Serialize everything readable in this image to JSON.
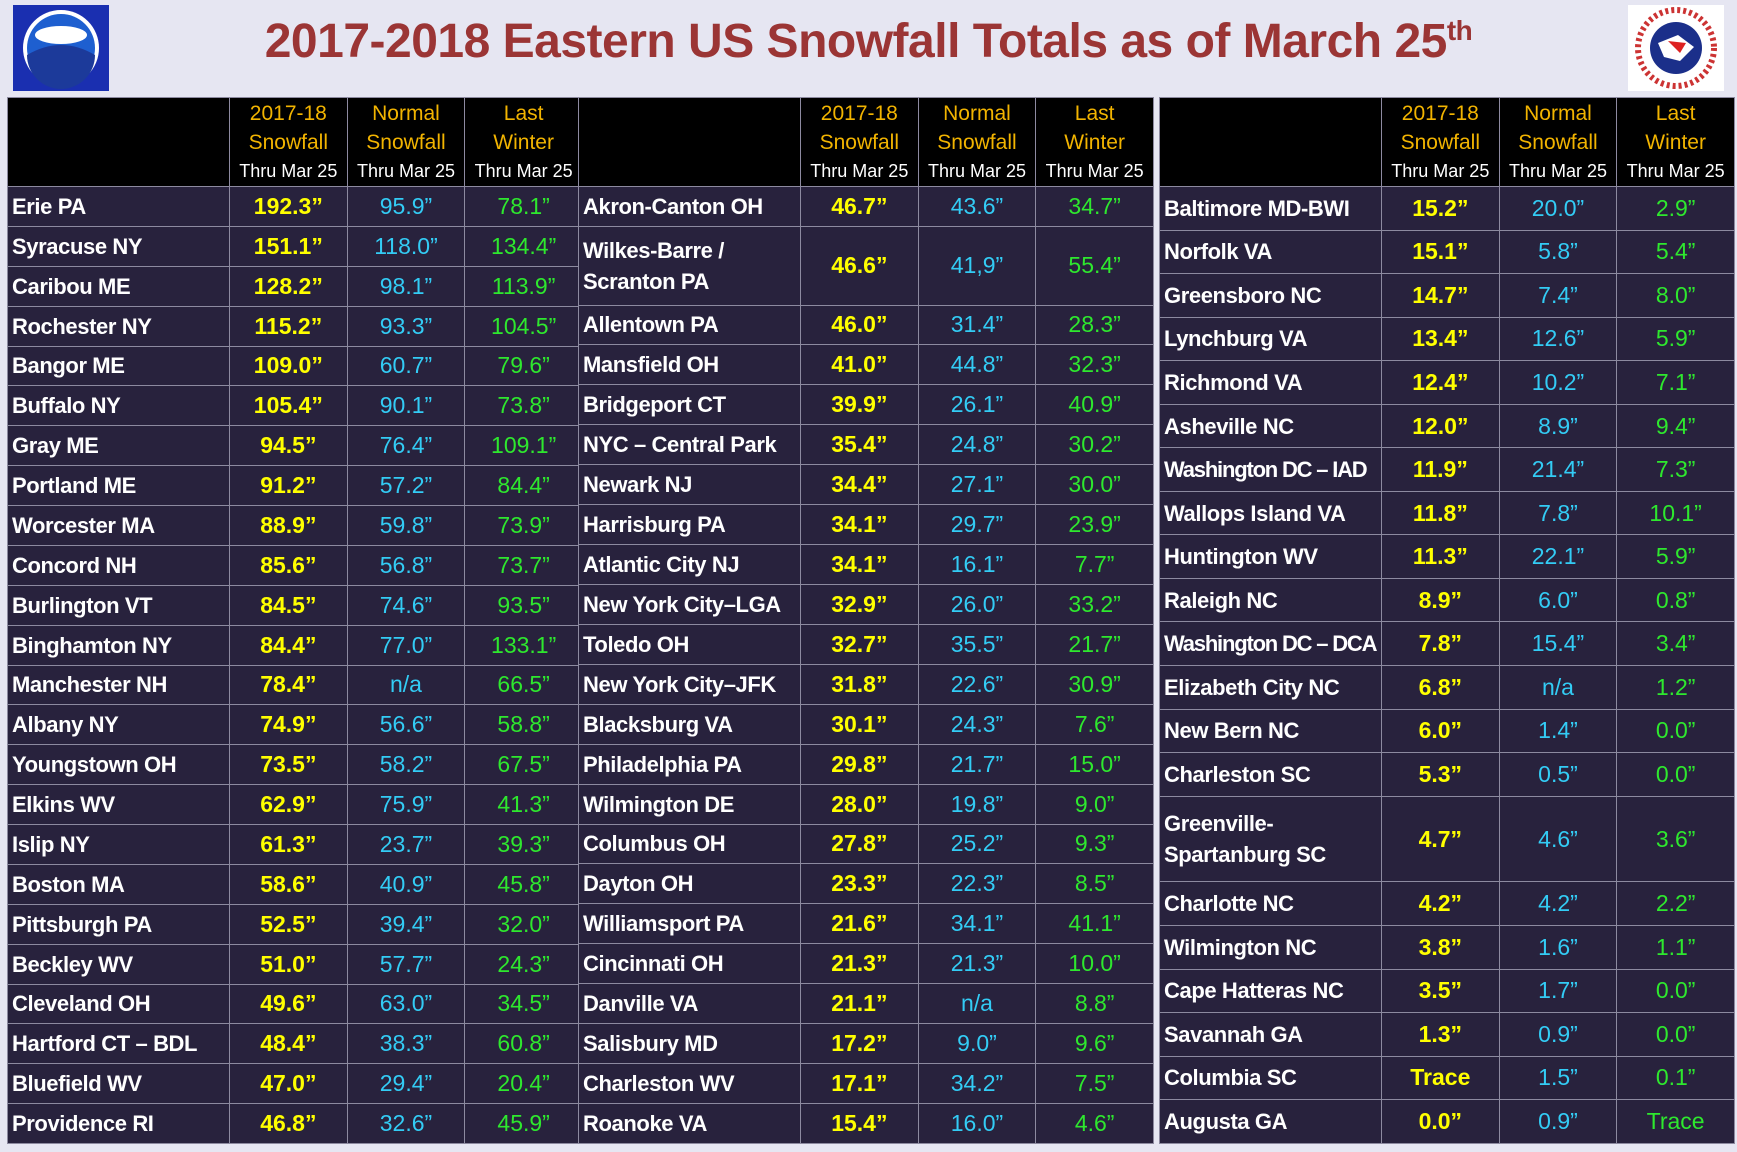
{
  "header": {
    "title": "2017-2018 Eastern US Snowfall Totals as of March 25",
    "title_sup": "th"
  },
  "tables": [
    {
      "columns": [
        {
          "line1": "2017-18",
          "line2": "Snowfall",
          "sub": "Thru Mar 25"
        },
        {
          "line1": "Normal",
          "line2": "Snowfall",
          "sub": "Thru Mar 25"
        },
        {
          "line1": "Last",
          "line2": "Winter",
          "sub": "Thru Mar 25"
        }
      ],
      "rows": [
        [
          "Erie PA",
          "192.3”",
          "95.9”",
          "78.1”"
        ],
        [
          "Syracuse NY",
          "151.1”",
          "118.0”",
          "134.4”"
        ],
        [
          "Caribou ME",
          "128.2”",
          "98.1”",
          "113.9”"
        ],
        [
          "Rochester NY",
          "115.2”",
          "93.3”",
          "104.5”"
        ],
        [
          "Bangor ME",
          "109.0”",
          "60.7”",
          "79.6”"
        ],
        [
          "Buffalo NY",
          "105.4”",
          "90.1”",
          "73.8”"
        ],
        [
          "Gray ME",
          "94.5”",
          "76.4”",
          "109.1”"
        ],
        [
          "Portland ME",
          "91.2”",
          "57.2”",
          "84.4”"
        ],
        [
          "Worcester MA",
          "88.9”",
          "59.8”",
          "73.9”"
        ],
        [
          "Concord NH",
          "85.6”",
          "56.8”",
          "73.7”"
        ],
        [
          "Burlington VT",
          "84.5”",
          "74.6”",
          "93.5”"
        ],
        [
          "Binghamton NY",
          "84.4”",
          "77.0”",
          "133.1”"
        ],
        [
          "Manchester NH",
          "78.4”",
          "n/a",
          "66.5”"
        ],
        [
          "Albany NY",
          "74.9”",
          "56.6”",
          "58.8”"
        ],
        [
          "Youngstown OH",
          "73.5”",
          "58.2”",
          "67.5”"
        ],
        [
          "Elkins WV",
          "62.9”",
          "75.9”",
          "41.3”"
        ],
        [
          "Islip NY",
          "61.3”",
          "23.7”",
          "39.3”"
        ],
        [
          "Boston MA",
          "58.6”",
          "40.9”",
          "45.8”"
        ],
        [
          "Pittsburgh PA",
          "52.5”",
          "39.4”",
          "32.0”"
        ],
        [
          "Beckley WV",
          "51.0”",
          "57.7”",
          "24.3”"
        ],
        [
          "Cleveland OH",
          "49.6”",
          "63.0”",
          "34.5”"
        ],
        [
          "Hartford CT – BDL",
          "48.4”",
          "38.3”",
          "60.8”"
        ],
        [
          "Bluefield WV",
          "47.0”",
          "29.4”",
          "20.4”"
        ],
        [
          "Providence RI",
          "46.8”",
          "32.6”",
          "45.9”"
        ]
      ]
    },
    {
      "columns": [
        {
          "line1": "2017-18",
          "line2": "Snowfall",
          "sub": "Thru Mar 25"
        },
        {
          "line1": "Normal",
          "line2": "Snowfall",
          "sub": "Thru Mar 25"
        },
        {
          "line1": "Last",
          "line2": "Winter",
          "sub": "Thru Mar 25"
        }
      ],
      "rows": [
        [
          "Akron-Canton OH",
          "46.7”",
          "43.6”",
          "34.7”"
        ],
        [
          "Wilkes-Barre / Scranton PA",
          "46.6”",
          "41,9”",
          "55.4”"
        ],
        [
          "Allentown PA",
          "46.0”",
          "31.4”",
          "28.3”"
        ],
        [
          "Mansfield OH",
          "41.0”",
          "44.8”",
          "32.3”"
        ],
        [
          "Bridgeport CT",
          "39.9”",
          "26.1”",
          "40.9”"
        ],
        [
          "NYC – Central Park",
          "35.4”",
          "24.8”",
          "30.2”"
        ],
        [
          "Newark NJ",
          "34.4”",
          "27.1”",
          "30.0”"
        ],
        [
          "Harrisburg PA",
          "34.1”",
          "29.7”",
          "23.9”"
        ],
        [
          "Atlantic City NJ",
          "34.1”",
          "16.1”",
          "7.7”"
        ],
        [
          "New York City–LGA",
          "32.9”",
          "26.0”",
          "33.2”"
        ],
        [
          "Toledo OH",
          "32.7”",
          "35.5”",
          "21.7”"
        ],
        [
          "New York City–JFK",
          "31.8”",
          "22.6”",
          "30.9”"
        ],
        [
          "Blacksburg VA",
          "30.1”",
          "24.3”",
          "7.6”"
        ],
        [
          "Philadelphia PA",
          "29.8”",
          "21.7”",
          "15.0”"
        ],
        [
          "Wilmington DE",
          "28.0”",
          "19.8”",
          "9.0”"
        ],
        [
          "Columbus OH",
          "27.8”",
          "25.2”",
          "9.3”"
        ],
        [
          "Dayton OH",
          "23.3”",
          "22.3”",
          "8.5”"
        ],
        [
          "Williamsport PA",
          "21.6”",
          "34.1”",
          "41.1”"
        ],
        [
          "Cincinnati OH",
          "21.3”",
          "21.3”",
          "10.0”"
        ],
        [
          "Danville VA",
          "21.1”",
          "n/a",
          "8.8”"
        ],
        [
          "Salisbury MD",
          "17.2”",
          "9.0”",
          "9.6”"
        ],
        [
          "Charleston WV",
          "17.1”",
          "34.2”",
          "7.5”"
        ],
        [
          "Roanoke VA",
          "15.4”",
          "16.0”",
          "4.6”"
        ]
      ]
    },
    {
      "columns": [
        {
          "line1": "2017-18",
          "line2": "Snowfall",
          "sub": "Thru Mar 25"
        },
        {
          "line1": "Normal",
          "line2": "Snowfall",
          "sub": "Thru Mar 25"
        },
        {
          "line1": "Last",
          "line2": "Winter",
          "sub": "Thru Mar 25"
        }
      ],
      "rows": [
        [
          "Baltimore MD-BWI",
          "15.2”",
          "20.0”",
          "2.9”"
        ],
        [
          "Norfolk VA",
          "15.1”",
          "5.8”",
          "5.4”"
        ],
        [
          "Greensboro NC",
          "14.7”",
          "7.4”",
          "8.0”"
        ],
        [
          "Lynchburg VA",
          "13.4”",
          "12.6”",
          "5.9”"
        ],
        [
          "Richmond VA",
          "12.4”",
          "10.2”",
          "7.1”"
        ],
        [
          "Asheville NC",
          "12.0”",
          "8.9”",
          "9.4”"
        ],
        [
          "Washington DC – IAD",
          "11.9”",
          "21.4”",
          "7.3”"
        ],
        [
          "Wallops Island VA",
          "11.8”",
          "7.8”",
          "10.1”"
        ],
        [
          "Huntington WV",
          "11.3”",
          "22.1”",
          "5.9”"
        ],
        [
          "Raleigh NC",
          "8.9”",
          "6.0”",
          "0.8”"
        ],
        [
          "Washington DC – DCA",
          "7.8”",
          "15.4”",
          "3.4”"
        ],
        [
          "Elizabeth City NC",
          "6.8”",
          "n/a",
          "1.2”"
        ],
        [
          "New Bern NC",
          "6.0”",
          "1.4”",
          "0.0”"
        ],
        [
          "Charleston SC",
          "5.3”",
          "0.5”",
          "0.0”"
        ],
        [
          "Greenville-Spartanburg SC",
          "4.7”",
          "4.6”",
          "3.6”"
        ],
        [
          "Charlotte NC",
          "4.2”",
          "4.2”",
          "2.2”"
        ],
        [
          "Wilmington NC",
          "3.8”",
          "1.6”",
          "1.1”"
        ],
        [
          "Cape Hatteras NC",
          "3.5”",
          "1.7”",
          "0.0”"
        ],
        [
          "Savannah GA",
          "1.3”",
          "0.9”",
          "0.0”"
        ],
        [
          "Columbia SC",
          "Trace",
          "1.5”",
          "0.1”"
        ],
        [
          "Augusta GA",
          "0.0”",
          "0.9”",
          "Trace"
        ]
      ]
    }
  ]
}
